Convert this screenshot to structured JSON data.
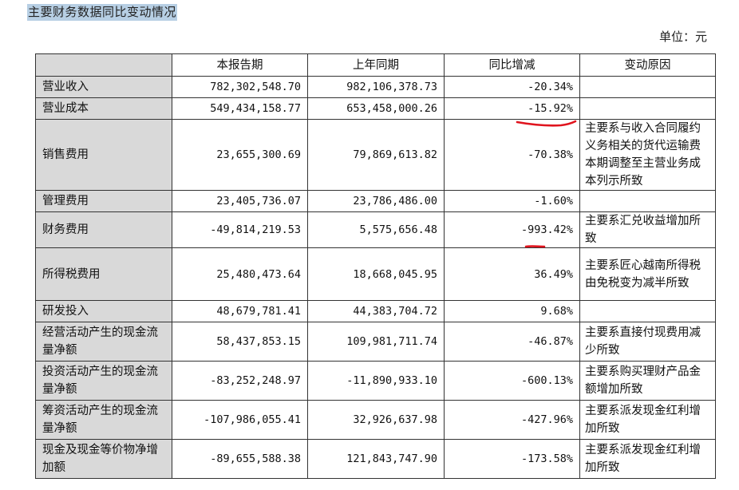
{
  "title": "主要财务数据同比变动情况",
  "unit": "单位：元",
  "table": {
    "headers": [
      "",
      "本报告期",
      "上年同期",
      "同比增减",
      "变动原因"
    ],
    "rows": [
      {
        "label": "营业收入",
        "current": "782,302,548.70",
        "previous": "982,106,378.73",
        "change": "-20.34%",
        "reason": ""
      },
      {
        "label": "营业成本",
        "current": "549,434,158.77",
        "previous": "653,458,000.26",
        "change": "-15.92%",
        "reason": ""
      },
      {
        "label": "销售费用",
        "current": "23,655,300.69",
        "previous": "79,869,613.82",
        "change": "-70.38%",
        "reason": "主要系与收入合同履约义务相关的货代运输费本期调整至主营业务成本列示所致"
      },
      {
        "label": "管理费用",
        "current": "23,405,736.07",
        "previous": "23,786,486.00",
        "change": "-1.60%",
        "reason": ""
      },
      {
        "label": "财务费用",
        "current": "-49,814,219.53",
        "previous": "5,575,656.48",
        "change": "-993.42%",
        "reason": "主要系汇兑收益增加所致"
      },
      {
        "label": "所得税费用",
        "current": "25,480,473.64",
        "previous": "18,668,045.95",
        "change": "36.49%",
        "reason": "主要系匠心越南所得税由免税变为减半所致"
      },
      {
        "label": "研发投入",
        "current": "48,679,781.41",
        "previous": "44,383,704.72",
        "change": "9.68%",
        "reason": ""
      },
      {
        "label": "经营活动产生的现金流量净额",
        "current": "58,437,853.15",
        "previous": "109,981,711.74",
        "change": "-46.87%",
        "reason": "主要系直接付现费用减少所致"
      },
      {
        "label": "投资活动产生的现金流量净额",
        "current": "-83,252,248.97",
        "previous": "-11,890,933.10",
        "change": "-600.13%",
        "reason": "主要系购买理财产品金额增加所致"
      },
      {
        "label": "筹资活动产生的现金流量净额",
        "current": "-107,986,055.41",
        "previous": "32,926,637.98",
        "change": "-427.96%",
        "reason": "主要系派发现金红利增加所致"
      },
      {
        "label": "现金及现金等价物净增加额",
        "current": "-89,655,588.38",
        "previous": "121,843,747.90",
        "change": "-173.58%",
        "reason": "主要系派发现金红利增加所致"
      }
    ]
  },
  "annotation_color": "#e0141e"
}
